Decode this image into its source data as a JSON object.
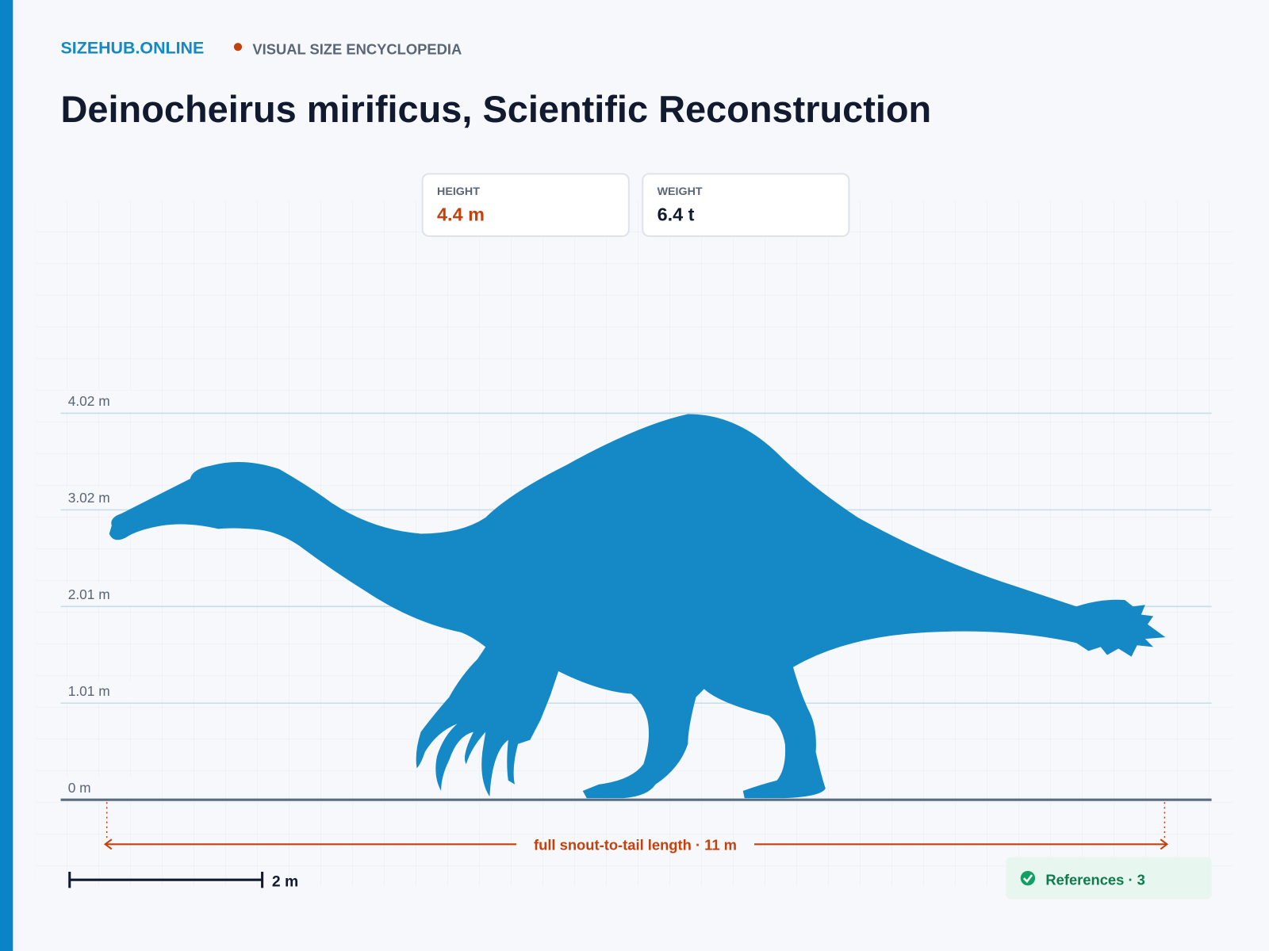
{
  "header": {
    "brand": "SIZEHUB.ONLINE",
    "tagline": "VISUAL SIZE ENCYCLOPEDIA"
  },
  "title": "Deinocheirus mirificus, Scientific Reconstruction",
  "stats": [
    {
      "label": "HEIGHT",
      "value": "4.4 m"
    },
    {
      "label": "WEIGHT",
      "value": "6.4 t"
    }
  ],
  "scale_lines": [
    "4.02 m",
    "3.02 m",
    "2.01 m",
    "1.01 m",
    "0 m"
  ],
  "length_label": "full snout-to-tail length · 11 m",
  "scale_bar": "2 m",
  "references": "References · 3"
}
